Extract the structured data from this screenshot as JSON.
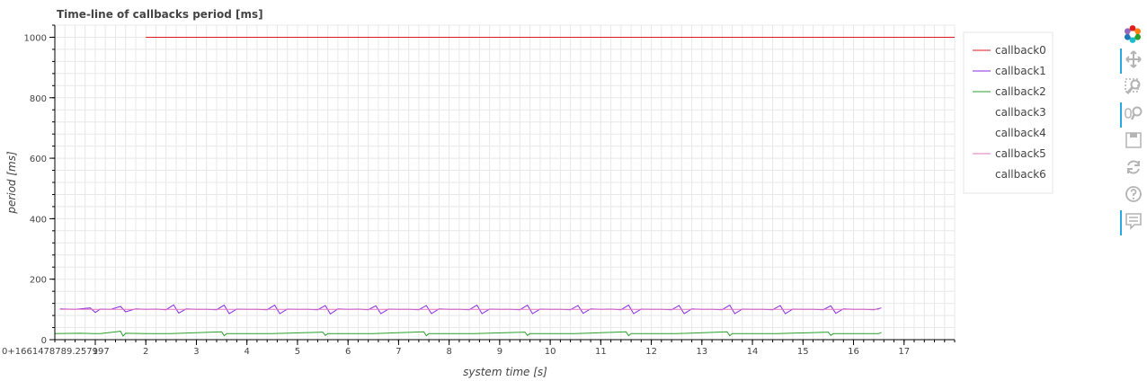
{
  "chart_data": {
    "type": "line",
    "title": "Time-line of callbacks period [ms]",
    "xlabel": "system time [s]",
    "ylabel": "period [ms]",
    "x_offset_label": "0+1661478789.257997",
    "xlim": [
      0.2,
      18.0
    ],
    "ylim": [
      0,
      1040
    ],
    "x_ticks": [
      1,
      2,
      3,
      4,
      5,
      6,
      7,
      8,
      9,
      10,
      11,
      12,
      13,
      14,
      15,
      16,
      17
    ],
    "x_tick_labels": [
      "1",
      "2",
      "3",
      "4",
      "5",
      "6",
      "7",
      "8",
      "9",
      "10",
      "11",
      "12",
      "13",
      "14",
      "15",
      "16",
      "17"
    ],
    "y_ticks": [
      0,
      200,
      400,
      600,
      800,
      1000
    ],
    "y_tick_labels": [
      "0",
      "200",
      "400",
      "600",
      "800",
      "1000"
    ],
    "grid": true,
    "legend_position": "right",
    "series": [
      {
        "name": "callback0",
        "color": "#e31a1c",
        "x": [
          2.0,
          18.0
        ],
        "y": [
          1000,
          1000
        ]
      },
      {
        "name": "callback1",
        "color": "#8a2be2",
        "x": [
          0.3,
          0.6,
          0.9,
          1.0,
          1.1,
          1.3,
          1.5,
          1.6,
          1.8,
          2.0,
          2.2,
          2.4,
          2.55,
          2.65,
          2.8,
          3.0,
          3.2,
          3.4,
          3.55,
          3.65,
          3.8,
          4.0,
          4.2,
          4.4,
          4.55,
          4.65,
          4.8,
          5.0,
          5.2,
          5.4,
          5.55,
          5.65,
          5.8,
          6.0,
          6.2,
          6.4,
          6.55,
          6.65,
          6.8,
          7.0,
          7.2,
          7.4,
          7.55,
          7.65,
          7.8,
          8.0,
          8.2,
          8.4,
          8.55,
          8.65,
          8.8,
          9.0,
          9.2,
          9.4,
          9.55,
          9.65,
          9.8,
          10.0,
          10.2,
          10.4,
          10.55,
          10.65,
          10.8,
          11.0,
          11.2,
          11.4,
          11.55,
          11.65,
          11.8,
          12.0,
          12.2,
          12.4,
          12.55,
          12.65,
          12.8,
          13.0,
          13.2,
          13.4,
          13.55,
          13.65,
          13.8,
          14.0,
          14.2,
          14.4,
          14.55,
          14.65,
          14.8,
          15.0,
          15.2,
          15.4,
          15.55,
          15.65,
          15.8,
          16.0,
          16.2,
          16.4,
          16.55
        ],
        "y": [
          102,
          100,
          105,
          90,
          101,
          100,
          110,
          92,
          102,
          100,
          101,
          99,
          115,
          88,
          102,
          100,
          100,
          99,
          114,
          86,
          101,
          100,
          100,
          99,
          114,
          86,
          101,
          100,
          100,
          99,
          113,
          85,
          102,
          100,
          101,
          99,
          112,
          86,
          101,
          100,
          100,
          99,
          113,
          86,
          102,
          100,
          100,
          99,
          114,
          86,
          101,
          100,
          100,
          99,
          114,
          86,
          101,
          100,
          100,
          99,
          113,
          87,
          102,
          100,
          101,
          99,
          114,
          86,
          101,
          100,
          100,
          99,
          113,
          86,
          102,
          100,
          100,
          99,
          114,
          86,
          101,
          100,
          100,
          99,
          113,
          86,
          101,
          100,
          100,
          99,
          112,
          87,
          102,
          100,
          100,
          99,
          105
        ]
      },
      {
        "name": "callback2",
        "color": "#2ca02c",
        "x": [
          0.2,
          0.7,
          1.0,
          1.1,
          1.5,
          1.55,
          1.6,
          2.0,
          2.5,
          3.5,
          3.55,
          3.6,
          4.5,
          5.5,
          5.55,
          5.6,
          6.5,
          7.5,
          7.55,
          7.6,
          8.5,
          9.5,
          9.55,
          9.6,
          10.5,
          11.5,
          11.55,
          11.6,
          12.5,
          13.5,
          13.55,
          13.6,
          14.5,
          15.5,
          15.55,
          15.6,
          16.5,
          16.55
        ],
        "y": [
          20,
          21,
          20,
          20,
          28,
          12,
          21,
          20,
          20,
          26,
          13,
          20,
          20,
          25,
          14,
          20,
          20,
          26,
          13,
          20,
          20,
          25,
          14,
          20,
          20,
          26,
          13,
          20,
          20,
          26,
          13,
          20,
          20,
          25,
          14,
          20,
          20,
          24
        ]
      },
      {
        "name": "callback3",
        "color": "#ffffff",
        "x": [],
        "y": []
      },
      {
        "name": "callback4",
        "color": "#ffffff",
        "x": [],
        "y": []
      },
      {
        "name": "callback5",
        "color": "#e377c2",
        "x": [
          0.3,
          16.5
        ],
        "y": [
          100,
          100
        ]
      },
      {
        "name": "callback6",
        "color": "#ffffff",
        "x": [],
        "y": []
      }
    ]
  },
  "toolbar": {
    "tools": [
      {
        "icon": "bokeh-logo-icon",
        "active": false
      },
      {
        "icon": "pan-icon",
        "active": true
      },
      {
        "icon": "box-zoom-icon",
        "active": false
      },
      {
        "icon": "wheel-zoom-icon",
        "active": true
      },
      {
        "icon": "save-icon",
        "active": false
      },
      {
        "icon": "reset-icon",
        "active": false
      },
      {
        "icon": "help-icon",
        "active": false
      },
      {
        "icon": "hover-icon",
        "active": true
      }
    ]
  }
}
